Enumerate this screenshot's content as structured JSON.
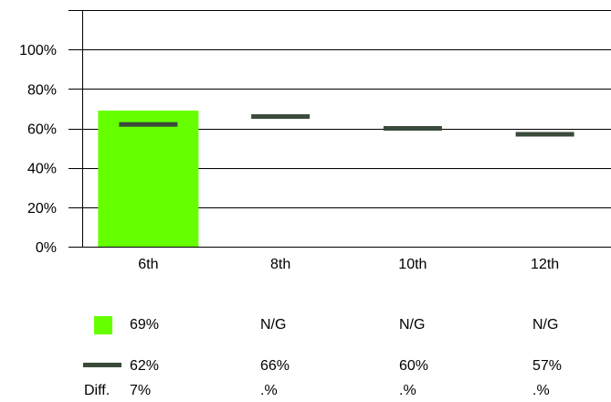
{
  "chart_data": {
    "type": "bar",
    "categories": [
      "6th",
      "8th",
      "10th",
      "12th"
    ],
    "series": [
      {
        "values": [
          69,
          null,
          null,
          null
        ],
        "color": "#66ff00",
        "mark": "bar"
      },
      {
        "values": [
          62,
          66,
          60,
          57
        ],
        "color": "#3a4a3a",
        "mark": "dash"
      }
    ],
    "ylim": [
      0,
      120
    ],
    "yticks": [
      "0%",
      "20%",
      "40%",
      "60%",
      "80%",
      "100%"
    ],
    "ytick_values": [
      0,
      20,
      40,
      60,
      80,
      100
    ],
    "grid": true,
    "xlabel": "",
    "ylabel": "",
    "title": ""
  },
  "legend": {
    "bar_row": [
      "69%",
      "N/G",
      "N/G",
      "N/G"
    ],
    "line_row": [
      "62%",
      "66%",
      "60%",
      "57%"
    ],
    "diff_label": "Diff.",
    "diff_row": [
      "7%",
      ".%",
      ".%",
      ".%"
    ]
  }
}
